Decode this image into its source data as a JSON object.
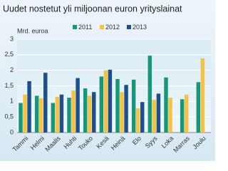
{
  "chart_data": {
    "type": "bar",
    "title": "Uudet nostetut yli miljoonan euron yrityslainat",
    "y_label": "Mrd. euroa",
    "categories": [
      "Tammi",
      "Helmi",
      "Maalis",
      "Huhti",
      "Touko",
      "Kesä",
      "Heinä",
      "Elo",
      "Syys",
      "Loka",
      "Marras",
      "Joulu"
    ],
    "series": [
      {
        "name": "2011",
        "color": "#17977a",
        "values": [
          0.95,
          1.18,
          0.95,
          1.12,
          1.42,
          1.8,
          1.72,
          1.7,
          2.47,
          1.77,
          1.07,
          1.62
        ]
      },
      {
        "name": "2012",
        "color": "#f4c244",
        "values": [
          1.22,
          1.1,
          1.15,
          1.35,
          1.18,
          2.0,
          1.3,
          0.78,
          1.05,
          1.12,
          1.22,
          2.38
        ]
      },
      {
        "name": "2013",
        "color": "#1d4f8c",
        "values": [
          1.65,
          1.92,
          1.22,
          1.75,
          1.3,
          2.02,
          1.53,
          0.98,
          1.25,
          null,
          null,
          null
        ]
      }
    ],
    "ylim": [
      0,
      3
    ],
    "yticks": [
      0,
      {
        "value": 0.5,
        "label": "0,5"
      },
      1,
      {
        "value": 1.5,
        "label": "1,5"
      },
      2,
      {
        "value": 2.5,
        "label": "2,5"
      },
      3
    ],
    "grid": true
  }
}
